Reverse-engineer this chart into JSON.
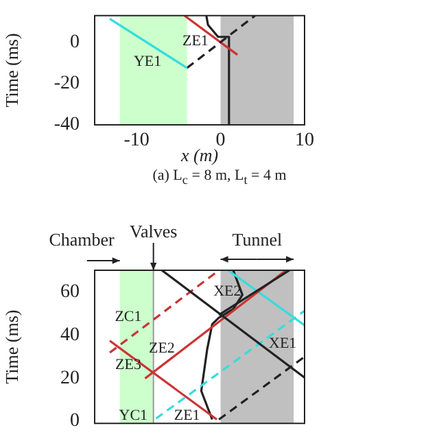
{
  "chart_data": [
    {
      "type": "line",
      "xlabel": "x (m)",
      "ylabel": "Time (ms)",
      "xlim": [
        -15,
        10
      ],
      "ylim": [
        -40,
        13
      ],
      "xticks": [
        -10,
        0,
        10
      ],
      "yticks": [
        -40,
        -20,
        0
      ],
      "grid": false,
      "legend": false,
      "marker": "none",
      "bands": [
        {
          "axis": "x",
          "from": -12,
          "to": -4,
          "color": "#ccffcc"
        },
        {
          "axis": "x",
          "from": 0,
          "to": 8.7,
          "color": "#c0c0c0"
        }
      ],
      "series": [
        {
          "color": "#33dddd",
          "x": [
            -4,
            -13.2
          ],
          "values": [
            -12.4,
            11.5
          ]
        },
        {
          "color": "#222222",
          "line_style": "dashed",
          "x": [
            -4,
            4.1
          ],
          "values": [
            -12.4,
            13
          ]
        },
        {
          "color": "#cc3333",
          "x": [
            -4.3,
            2
          ],
          "values": [
            13,
            -6
          ]
        },
        {
          "color": "#222222",
          "x": [
            1,
            1,
            -0.3,
            -1.5,
            -1.7
          ],
          "values": [
            -40,
            2.7,
            2.7,
            8.5,
            13
          ]
        }
      ],
      "annotations": [
        "YE1",
        "ZE1",
        "(a) L$_{c}$ = 8 m, L$_{t}$ = 4 m"
      ]
    },
    {
      "type": "line",
      "ylabel": "Time (ms)",
      "xlim": [
        -15,
        10
      ],
      "ylim": [
        -1,
        70
      ],
      "yticks": [
        0,
        20,
        40,
        60
      ],
      "tick_labels": "y",
      "grid": false,
      "legend": false,
      "marker": "none",
      "bands": [
        {
          "axis": "x",
          "from": -12,
          "to": -8,
          "color": "#ccffcc",
          "label": "Chamber"
        },
        {
          "axis": "x",
          "from": 0,
          "to": 8.7,
          "color": "#c0c0c0",
          "label": "Tunnel"
        }
      ],
      "ref_lines": [
        {
          "axis": "x",
          "value": -8,
          "label": "Valves",
          "color": "#999999"
        }
      ],
      "series": [
        {
          "color": "#222222",
          "x": [
            -7,
            10
          ],
          "values": [
            70,
            20.2
          ]
        },
        {
          "color": "#222222",
          "x": [
            -0.2,
            8.2
          ],
          "values": [
            49.3,
            70
          ]
        },
        {
          "color": "#cc3333",
          "x": [
            -9,
            7.8
          ],
          "values": [
            19.8,
            70
          ]
        },
        {
          "color": "#cc3333",
          "x": [
            -13.2,
            -0.45
          ],
          "values": [
            37.3,
            0.8
          ]
        },
        {
          "color": "#cc3333",
          "line_style": "dashed",
          "x": [
            -13.2,
            -0.2
          ],
          "values": [
            31.8,
            70
          ]
        },
        {
          "color": "#33dddd",
          "line_style": "dashed",
          "x": [
            -7.7,
            10
          ],
          "values": [
            1.2,
            51.2
          ]
        },
        {
          "color": "#33dddd",
          "x": [
            0.9,
            10
          ],
          "values": [
            70,
            44.5
          ]
        },
        {
          "color": "#222222",
          "line_style": "dashed",
          "x": [
            -0.2,
            10
          ],
          "values": [
            0.8,
            29.9
          ]
        },
        {
          "color": "#222222",
          "x": [
            -1,
            -2.3,
            -1.6,
            -1,
            -0.2,
            1.5,
            2.6,
            1.5
          ],
          "values": [
            0.8,
            14,
            33.3,
            45,
            48,
            52,
            58.6,
            70
          ]
        }
      ],
      "annotations": [
        "ZC1",
        "ZE2",
        "ZE3",
        "YC1",
        "ZE1",
        "XE2",
        "XE1"
      ]
    }
  ]
}
